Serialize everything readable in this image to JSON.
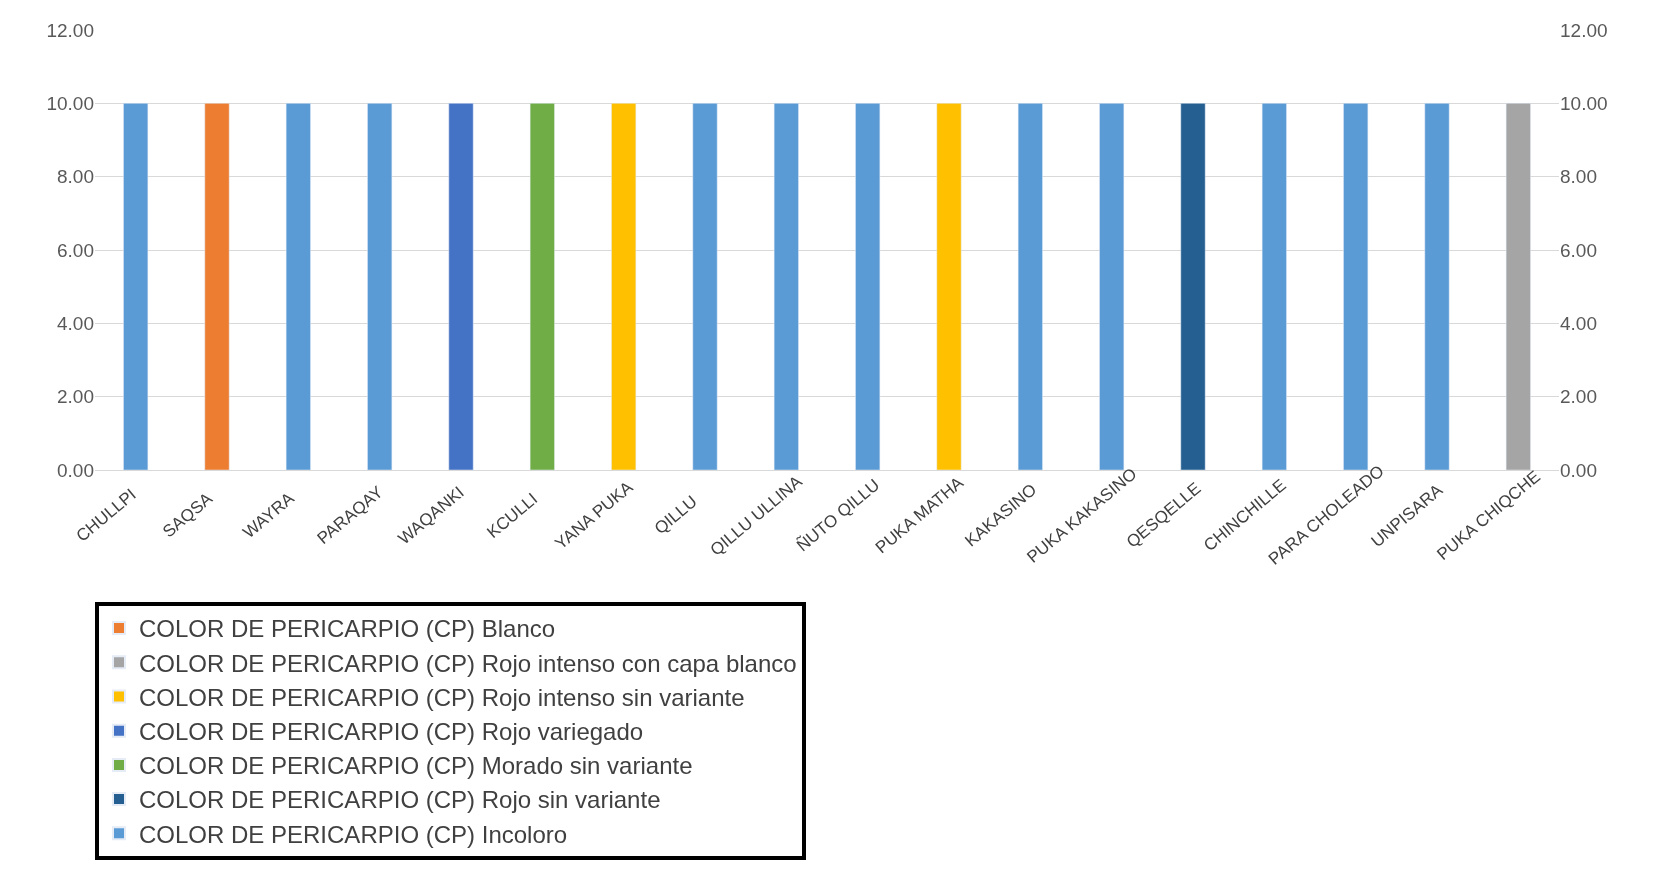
{
  "chart_data": {
    "type": "bar",
    "categories": [
      "CHULLPI",
      "SAQSA",
      "WAYRA",
      "PARAQAY",
      "WAQANKI",
      "KCULLI",
      "YANA PUKA",
      "QILLU",
      "QILLU ULLINA",
      "ÑUTO QILLU",
      "PUKA MATHA",
      "KAKASINO",
      "PUKA KAKASINO",
      "QESQELLE",
      "CHINCHILLE",
      "PARA CHOLEADO",
      "UNPISARA",
      "PUKA CHIQCHE"
    ],
    "series": [
      {
        "name": "COLOR DE PERICARPIO (CP) Blanco",
        "color": "#ed7d31",
        "values": [
          null,
          10,
          null,
          null,
          null,
          null,
          null,
          null,
          null,
          null,
          null,
          null,
          null,
          null,
          null,
          null,
          null,
          null
        ]
      },
      {
        "name": "COLOR DE PERICARPIO (CP) Rojo intenso con capa blanco",
        "color": "#a5a5a5",
        "values": [
          null,
          null,
          null,
          null,
          null,
          null,
          null,
          null,
          null,
          null,
          null,
          null,
          null,
          null,
          null,
          null,
          null,
          10
        ]
      },
      {
        "name": "COLOR DE PERICARPIO (CP) Rojo intenso sin variante",
        "color": "#ffc000",
        "values": [
          null,
          null,
          null,
          null,
          null,
          null,
          10,
          null,
          null,
          null,
          10,
          null,
          null,
          null,
          null,
          null,
          null,
          null
        ]
      },
      {
        "name": "COLOR DE PERICARPIO (CP) Rojo variegado",
        "color": "#4472c4",
        "values": [
          null,
          null,
          null,
          null,
          10,
          null,
          null,
          null,
          null,
          null,
          null,
          null,
          null,
          null,
          null,
          null,
          null,
          null
        ]
      },
      {
        "name": "COLOR DE PERICARPIO (CP) Morado sin variante",
        "color": "#70ad47",
        "values": [
          null,
          null,
          null,
          null,
          null,
          10,
          null,
          null,
          null,
          null,
          null,
          null,
          null,
          null,
          null,
          null,
          null,
          null
        ]
      },
      {
        "name": "COLOR DE PERICARPIO (CP) Rojo sin variante",
        "color": "#255e91",
        "values": [
          null,
          null,
          null,
          null,
          null,
          null,
          null,
          null,
          null,
          null,
          null,
          null,
          null,
          10,
          null,
          null,
          null,
          null
        ]
      },
      {
        "name": "COLOR DE PERICARPIO (CP) Incoloro",
        "color": "#5b9bd5",
        "values": [
          10,
          null,
          10,
          10,
          null,
          null,
          null,
          10,
          10,
          10,
          null,
          10,
          10,
          null,
          10,
          10,
          10,
          null
        ]
      }
    ],
    "ylim": [
      0,
      12
    ],
    "yticks": [
      {
        "value": 0,
        "label": "0.00"
      },
      {
        "value": 2,
        "label": "2.00"
      },
      {
        "value": 4,
        "label": "4.00"
      },
      {
        "value": 6,
        "label": "6.00"
      },
      {
        "value": 8,
        "label": "8.00"
      },
      {
        "value": 10,
        "label": "10.00"
      },
      {
        "value": 12,
        "label": "12.00"
      }
    ],
    "y2lim": [
      0,
      12
    ],
    "y2ticks": [
      {
        "value": 0,
        "label": "0.00"
      },
      {
        "value": 2,
        "label": "2.00"
      },
      {
        "value": 4,
        "label": "4.00"
      },
      {
        "value": 6,
        "label": "6.00"
      },
      {
        "value": 8,
        "label": "8.00"
      },
      {
        "value": 10,
        "label": "10.00"
      },
      {
        "value": 12,
        "label": "12.00"
      }
    ],
    "grid": "y",
    "legend": "bottom left"
  }
}
